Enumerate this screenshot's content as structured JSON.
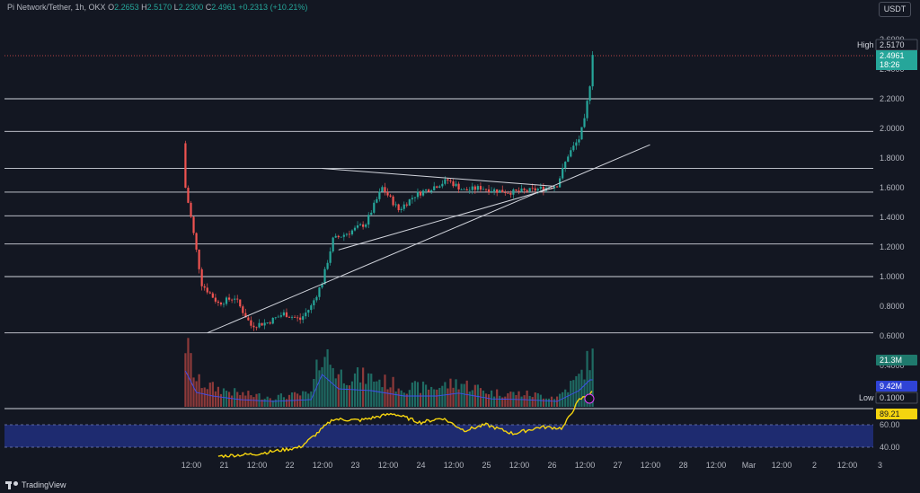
{
  "header": {
    "symbol": "Pi Network/Tether, 1h, OKX",
    "o_label": "O",
    "o": "2.2653",
    "h_label": "H",
    "h": "2.5170",
    "l_label": "L",
    "l": "2.2300",
    "c_label": "C",
    "c": "2.4961",
    "change": "+0.2313 (+10.21%)"
  },
  "currency": "USDT",
  "branding": "TradingView",
  "colors": {
    "up": "#26a69a",
    "down": "#ef5350",
    "background": "#131722",
    "rsi": "#f5d40f",
    "volume_ma": "#3f4ff0",
    "rsi_band": "#1e2b70"
  },
  "price_badges": {
    "high_label": "High",
    "high_value": "2.5170",
    "last_price": "2.4961",
    "countdown": "18:26",
    "volume": "21.3M",
    "volume_ma": "9.42M",
    "low_label": "Low",
    "low_value": "0.1000",
    "rsi": "89.21"
  },
  "chart_data": {
    "type": "candlestick",
    "title": "",
    "xlabel": "",
    "ylabel": "",
    "y_ticks": [
      "2.6000",
      "2.4000",
      "2.2000",
      "2.0000",
      "1.8000",
      "1.6000",
      "1.4000",
      "1.2000",
      "1.0000",
      "0.8000",
      "0.6000",
      "0.4000"
    ],
    "x_ticks": [
      "12:00",
      "21",
      "12:00",
      "22",
      "12:00",
      "23",
      "12:00",
      "24",
      "12:00",
      "25",
      "12:00",
      "26",
      "12:00",
      "27",
      "12:00",
      "28",
      "12:00",
      "Mar",
      "12:00",
      "2",
      "12:00",
      "3"
    ],
    "rsi_ticks": [
      "60.00",
      "40.00"
    ],
    "ylim": [
      0.1,
      2.55
    ],
    "horizontal_levels": [
      2.2,
      1.98,
      1.73,
      1.57,
      1.41,
      1.22,
      1.0,
      0.62
    ],
    "trendlines": [
      {
        "from": [
          "20 18:00",
          0.62
        ],
        "to": [
          "27 12:00",
          1.89
        ]
      },
      {
        "from": [
          "22 12:00",
          1.73
        ],
        "to": [
          "26 01:00",
          1.61
        ]
      },
      {
        "from": [
          "22 18:00",
          1.18
        ],
        "to": [
          "26 01:00",
          1.6
        ]
      }
    ],
    "price_series_close": [
      [
        "20 10:00",
        1.6
      ],
      [
        "20 12:00",
        1.4
      ],
      [
        "20 16:00",
        0.95
      ],
      [
        "20 22:00",
        0.82
      ],
      [
        "21 04:00",
        0.86
      ],
      [
        "21 10:00",
        0.67
      ],
      [
        "21 16:00",
        0.69
      ],
      [
        "21 22:00",
        0.75
      ],
      [
        "22 04:00",
        0.71
      ],
      [
        "22 08:00",
        0.8
      ],
      [
        "22 12:00",
        0.96
      ],
      [
        "22 16:00",
        1.25
      ],
      [
        "22 22:00",
        1.3
      ],
      [
        "23 04:00",
        1.36
      ],
      [
        "23 10:00",
        1.6
      ],
      [
        "23 16:00",
        1.45
      ],
      [
        "23 22:00",
        1.55
      ],
      [
        "24 04:00",
        1.6
      ],
      [
        "24 10:00",
        1.65
      ],
      [
        "24 16:00",
        1.58
      ],
      [
        "24 22:00",
        1.6
      ],
      [
        "25 04:00",
        1.58
      ],
      [
        "25 10:00",
        1.57
      ],
      [
        "25 16:00",
        1.58
      ],
      [
        "25 22:00",
        1.6
      ],
      [
        "26 02:00",
        1.62
      ],
      [
        "26 06:00",
        1.82
      ],
      [
        "26 10:00",
        1.93
      ],
      [
        "26 12:00",
        2.05
      ],
      [
        "26 14:00",
        2.3
      ],
      [
        "26 15:00",
        2.4961
      ]
    ],
    "volume_relative": [
      [
        "20 10:00",
        1.0
      ],
      [
        "20 14:00",
        0.4
      ],
      [
        "20 20:00",
        0.3
      ],
      [
        "21 06:00",
        0.2
      ],
      [
        "21 18:00",
        0.15
      ],
      [
        "22 08:00",
        0.2
      ],
      [
        "22 12:00",
        0.9
      ],
      [
        "22 18:00",
        0.5
      ],
      [
        "23 06:00",
        0.45
      ],
      [
        "23 18:00",
        0.3
      ],
      [
        "24 06:00",
        0.3
      ],
      [
        "24 14:00",
        0.38
      ],
      [
        "25 02:00",
        0.22
      ],
      [
        "25 14:00",
        0.2
      ],
      [
        "26 02:00",
        0.15
      ],
      [
        "26 10:00",
        0.45
      ],
      [
        "26 14:00",
        0.75
      ]
    ],
    "rsi_series": [
      [
        "20 22:00",
        32
      ],
      [
        "21 12:00",
        34
      ],
      [
        "22 04:00",
        40
      ],
      [
        "22 10:00",
        52
      ],
      [
        "22 16:00",
        65
      ],
      [
        "23 02:00",
        64
      ],
      [
        "23 14:00",
        70
      ],
      [
        "24 00:00",
        62
      ],
      [
        "24 08:00",
        66
      ],
      [
        "24 16:00",
        55
      ],
      [
        "25 00:00",
        60
      ],
      [
        "25 10:00",
        52
      ],
      [
        "25 20:00",
        58
      ],
      [
        "26 04:00",
        57
      ],
      [
        "26 10:00",
        82
      ],
      [
        "26 15:00",
        89.21
      ]
    ]
  }
}
